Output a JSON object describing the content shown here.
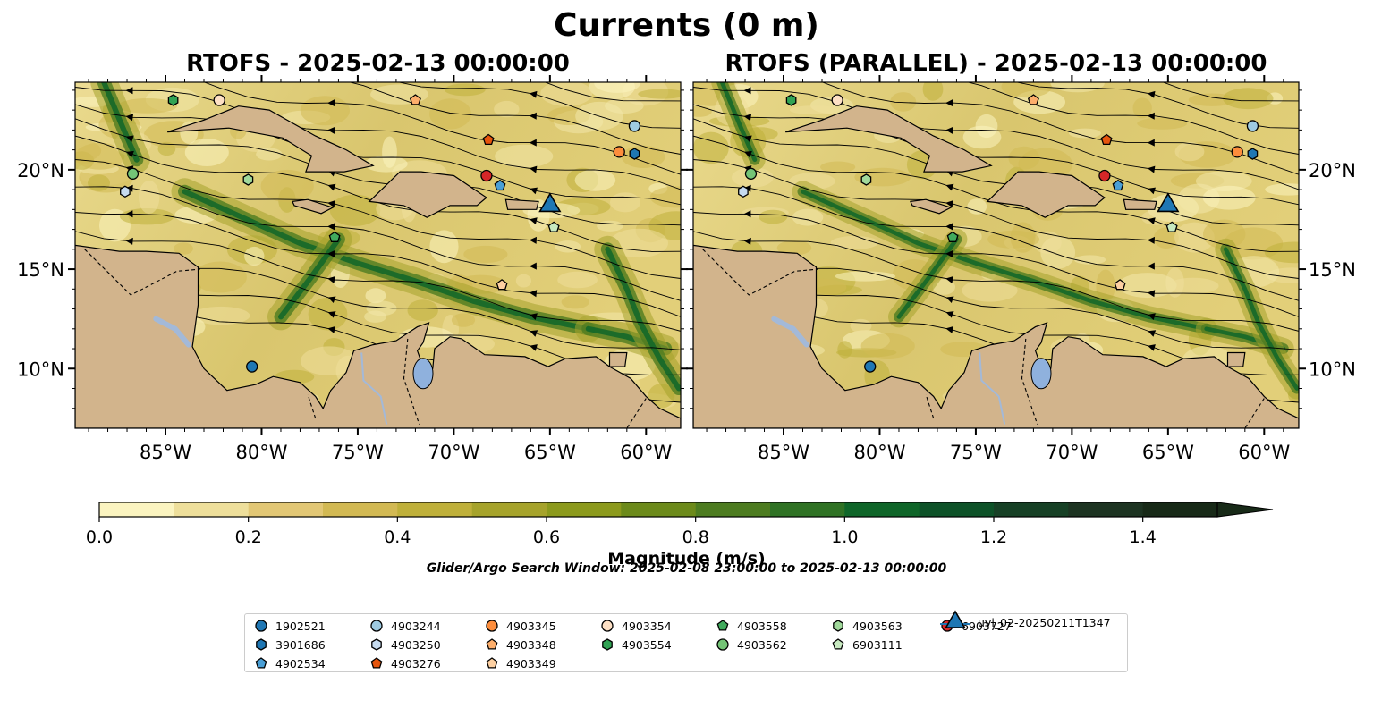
{
  "figure": {
    "title": "Currents (0 m)",
    "colorbar_label": "Magnitude (m/s)",
    "search_window": "Glider/Argo Search Window: 2025-02-08 23:00:00 to 2025-02-13 00:00:00",
    "colors": {
      "land": "#d2b48c",
      "ocean_low": "#fbf4c0",
      "ocean_high": "#182a18",
      "rivers": "#a3b9d8"
    }
  },
  "colorbar": {
    "min": 0.0,
    "max": 1.5,
    "extend": "max",
    "bins": [
      {
        "start": 0.0,
        "color": "#fbf4c0"
      },
      {
        "start": 0.1,
        "color": "#eedf9b"
      },
      {
        "start": 0.2,
        "color": "#e2c775"
      },
      {
        "start": 0.3,
        "color": "#d2b953"
      },
      {
        "start": 0.4,
        "color": "#bfb03a"
      },
      {
        "start": 0.5,
        "color": "#a6a32b"
      },
      {
        "start": 0.6,
        "color": "#8c9a1c"
      },
      {
        "start": 0.7,
        "color": "#6c8a1a"
      },
      {
        "start": 0.8,
        "color": "#4d7c20"
      },
      {
        "start": 0.9,
        "color": "#2f7224"
      },
      {
        "start": 1.0,
        "color": "#0f6629"
      },
      {
        "start": 1.1,
        "color": "#0d5228"
      },
      {
        "start": 1.2,
        "color": "#174126"
      },
      {
        "start": 1.3,
        "color": "#1d3422"
      },
      {
        "start": 1.4,
        "color": "#182a18"
      }
    ],
    "ticks": [
      {
        "value": 0.0,
        "label": "0.0"
      },
      {
        "value": 0.2,
        "label": "0.2"
      },
      {
        "value": 0.4,
        "label": "0.4"
      },
      {
        "value": 0.6,
        "label": "0.6"
      },
      {
        "value": 0.8,
        "label": "0.8"
      },
      {
        "value": 1.0,
        "label": "1.0"
      },
      {
        "value": 1.2,
        "label": "1.2"
      },
      {
        "value": 1.4,
        "label": "1.4"
      }
    ]
  },
  "map_extent": {
    "lon": [
      -89.7,
      -58.2
    ],
    "lat": [
      7.0,
      24.4
    ]
  },
  "axes": {
    "x_ticks": [
      {
        "lon": -85,
        "label": "85°W"
      },
      {
        "lon": -80,
        "label": "80°W"
      },
      {
        "lon": -75,
        "label": "75°W"
      },
      {
        "lon": -70,
        "label": "70°W"
      },
      {
        "lon": -65,
        "label": "65°W"
      },
      {
        "lon": -60,
        "label": "60°W"
      }
    ],
    "y_ticks": [
      {
        "lat": 10,
        "label": "10°N"
      },
      {
        "lat": 15,
        "label": "15°N"
      },
      {
        "lat": 20,
        "label": "20°N"
      }
    ]
  },
  "panels": [
    {
      "title": "RTOFS - 2025-02-13 00:00:00"
    },
    {
      "title": "RTOFS (PARALLEL) - 2025-02-13 00:00:00"
    }
  ],
  "platforms": [
    {
      "id": "1902521",
      "marker": "circle",
      "color": "#1f77b4",
      "lon": -80.5,
      "lat": 10.1
    },
    {
      "id": "3901686",
      "marker": "hexagon",
      "color": "#1f77b4",
      "lon": -60.6,
      "lat": 20.8
    },
    {
      "id": "4902534",
      "marker": "pentagon",
      "color": "#4a9fd6",
      "lon": -67.6,
      "lat": 19.2
    },
    {
      "id": "4903244",
      "marker": "circle",
      "color": "#9ecae1",
      "lon": -60.6,
      "lat": 22.2
    },
    {
      "id": "4903250",
      "marker": "hexagon",
      "color": "#c6dbef",
      "lon": -87.1,
      "lat": 18.9
    },
    {
      "id": "4903276",
      "marker": "pentagon",
      "color": "#e6550d",
      "lon": -68.2,
      "lat": 21.5
    },
    {
      "id": "4903345",
      "marker": "circle",
      "color": "#fd8d3c",
      "lon": -61.4,
      "lat": 20.9
    },
    {
      "id": "4903348",
      "marker": "pentagon",
      "color": "#fdae6b",
      "lon": -72.0,
      "lat": 23.5
    },
    {
      "id": "4903349",
      "marker": "pentagon",
      "color": "#fdd0a2",
      "lon": -67.5,
      "lat": 14.2
    },
    {
      "id": "4903354",
      "marker": "circle",
      "color": "#fde0c5",
      "lon": -82.2,
      "lat": 23.5
    },
    {
      "id": "4903554",
      "marker": "hexagon",
      "color": "#31a354",
      "lon": -84.6,
      "lat": 23.5
    },
    {
      "id": "4903558",
      "marker": "pentagon",
      "color": "#41ab5d",
      "lon": -76.2,
      "lat": 16.6
    },
    {
      "id": "4903562",
      "marker": "circle",
      "color": "#74c476",
      "lon": -86.7,
      "lat": 19.8
    },
    {
      "id": "4903563",
      "marker": "hexagon",
      "color": "#a1d99b",
      "lon": -80.7,
      "lat": 19.5
    },
    {
      "id": "6903111",
      "marker": "pentagon",
      "color": "#c7e9c0",
      "lon": -64.8,
      "lat": 17.1
    },
    {
      "id": "6903727",
      "marker": "circle",
      "color": "#d62728",
      "lon": -68.3,
      "lat": 19.7
    },
    {
      "id": "uvi_02-20250211T1347",
      "marker": "triangle",
      "color": "#1f77b4",
      "lon": -65.0,
      "lat": 18.2
    }
  ],
  "land_polygons": [
    [
      [
        -89.7,
        16.2
      ],
      [
        -88.2,
        16.0
      ],
      [
        -87.4,
        15.9
      ],
      [
        -86.0,
        15.9
      ],
      [
        -84.3,
        15.8
      ],
      [
        -83.3,
        15.1
      ],
      [
        -83.3,
        13.2
      ],
      [
        -83.6,
        11.1
      ],
      [
        -83.0,
        10.0
      ],
      [
        -81.8,
        8.9
      ],
      [
        -80.3,
        9.2
      ],
      [
        -79.4,
        9.6
      ],
      [
        -78.0,
        9.3
      ],
      [
        -77.2,
        8.6
      ],
      [
        -76.8,
        8.0
      ],
      [
        -76.4,
        8.9
      ],
      [
        -75.6,
        9.8
      ],
      [
        -75.2,
        10.9
      ],
      [
        -74.2,
        11.2
      ],
      [
        -73.0,
        11.4
      ],
      [
        -71.9,
        12.1
      ],
      [
        -71.3,
        12.3
      ],
      [
        -71.6,
        11.3
      ],
      [
        -71.9,
        10.9
      ],
      [
        -71.5,
        9.8
      ],
      [
        -71.1,
        10.0
      ],
      [
        -71.0,
        11.0
      ],
      [
        -70.2,
        11.6
      ],
      [
        -69.6,
        11.5
      ],
      [
        -68.4,
        10.7
      ],
      [
        -66.3,
        10.6
      ],
      [
        -65.1,
        10.1
      ],
      [
        -64.2,
        10.5
      ],
      [
        -62.6,
        10.6
      ],
      [
        -61.9,
        10.1
      ],
      [
        -60.8,
        9.5
      ],
      [
        -60.0,
        8.6
      ],
      [
        -59.3,
        8.0
      ],
      [
        -58.2,
        7.5
      ],
      [
        -58.2,
        7.0
      ],
      [
        -89.7,
        7.0
      ]
    ],
    [
      [
        -84.9,
        21.9
      ],
      [
        -83.0,
        22.5
      ],
      [
        -81.2,
        23.2
      ],
      [
        -79.6,
        23.0
      ],
      [
        -77.2,
        21.7
      ],
      [
        -75.6,
        21.0
      ],
      [
        -74.2,
        20.2
      ],
      [
        -75.7,
        19.9
      ],
      [
        -77.7,
        19.9
      ],
      [
        -77.4,
        20.7
      ],
      [
        -78.9,
        21.6
      ],
      [
        -81.7,
        22.1
      ],
      [
        -83.2,
        22.0
      ],
      [
        -84.9,
        21.9
      ]
    ],
    [
      [
        -74.4,
        18.4
      ],
      [
        -72.8,
        19.9
      ],
      [
        -71.7,
        19.9
      ],
      [
        -70.0,
        19.7
      ],
      [
        -68.3,
        18.6
      ],
      [
        -68.8,
        18.2
      ],
      [
        -70.2,
        18.2
      ],
      [
        -71.4,
        17.6
      ],
      [
        -72.6,
        18.2
      ],
      [
        -74.4,
        18.4
      ]
    ],
    [
      [
        -78.4,
        18.4
      ],
      [
        -77.6,
        18.5
      ],
      [
        -76.3,
        18.1
      ],
      [
        -76.9,
        17.8
      ],
      [
        -78.3,
        18.2
      ],
      [
        -78.4,
        18.4
      ]
    ],
    [
      [
        -67.3,
        18.5
      ],
      [
        -65.6,
        18.4
      ],
      [
        -65.7,
        18.0
      ],
      [
        -67.2,
        18.0
      ],
      [
        -67.3,
        18.5
      ]
    ],
    [
      [
        -61.9,
        10.8
      ],
      [
        -61.0,
        10.8
      ],
      [
        -61.1,
        10.1
      ],
      [
        -61.9,
        10.1
      ],
      [
        -61.9,
        10.8
      ]
    ]
  ]
}
